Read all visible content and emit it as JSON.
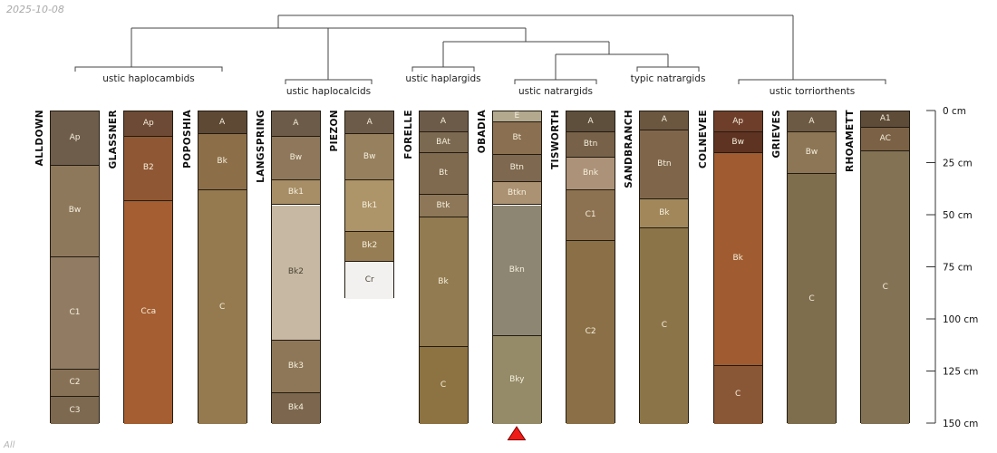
{
  "header": {
    "date": "2025-10-08"
  },
  "footer": {
    "label": "All"
  },
  "chart_data": {
    "type": "bar",
    "variant": "soil-profile-horizon-columns-with-dendrogram",
    "title": "",
    "depth_axis": {
      "unit": "cm",
      "min": 0,
      "max": 150,
      "ticks": [
        0,
        25,
        50,
        75,
        100,
        125,
        150
      ],
      "tick_labels": [
        "0 cm",
        "25 cm",
        "50 cm",
        "75 cm",
        "100 cm",
        "125 cm",
        "150 cm"
      ]
    },
    "groups": [
      {
        "label": "ustic haplocambids",
        "members": [
          "ALLDOWN",
          "GLASSNER",
          "POPOSHIA"
        ]
      },
      {
        "label": "ustic haplocalcids",
        "members": [
          "LANGSPRING",
          "PIEZON"
        ]
      },
      {
        "label": "ustic haplargids",
        "members": [
          "FORELLE"
        ]
      },
      {
        "label": "ustic natrargids",
        "members": [
          "OBADIA",
          "TISWORTH"
        ]
      },
      {
        "label": "typic natrargids",
        "members": [
          "SANDBRANCH"
        ]
      },
      {
        "label": "ustic torriorthents",
        "members": [
          "COLNEVEE",
          "GRIEVES",
          "RHOAMETT"
        ]
      }
    ],
    "dendrogram": {
      "description": "hierarchical clustering of soil subgroups",
      "topology": [
        "(ustic natrargids + typic natrargids)",
        "(ustic haplargids + natrargids-cluster)",
        "(ustic haplocambids + ustic haplocalcids + argids-cluster)",
        "(left-cluster + ustic torriorthents)"
      ]
    },
    "profiles": [
      {
        "name": "ALLDOWN",
        "group": "ustic haplocambids",
        "horizons": [
          {
            "label": "Ap",
            "top_cm": 0,
            "bottom_cm": 26,
            "color": "#6f5d4b"
          },
          {
            "label": "Bw",
            "top_cm": 26,
            "bottom_cm": 70,
            "color": "#8e785c"
          },
          {
            "label": "C1",
            "top_cm": 70,
            "bottom_cm": 124,
            "color": "#917c63"
          },
          {
            "label": "C2",
            "top_cm": 124,
            "bottom_cm": 137,
            "color": "#877156"
          },
          {
            "label": "C3",
            "top_cm": 137,
            "bottom_cm": 150,
            "color": "#7d6850"
          }
        ]
      },
      {
        "name": "GLASSNER",
        "group": "ustic haplocambids",
        "horizons": [
          {
            "label": "Ap",
            "top_cm": 0,
            "bottom_cm": 12,
            "color": "#6d4a35"
          },
          {
            "label": "B2",
            "top_cm": 12,
            "bottom_cm": 43,
            "color": "#8f5733"
          },
          {
            "label": "Cca",
            "top_cm": 43,
            "bottom_cm": 150,
            "color": "#a55e31"
          }
        ]
      },
      {
        "name": "POPOSHIA",
        "group": "ustic haplocambids",
        "horizons": [
          {
            "label": "A",
            "top_cm": 0,
            "bottom_cm": 11,
            "color": "#5e4935"
          },
          {
            "label": "Bk",
            "top_cm": 11,
            "bottom_cm": 38,
            "color": "#8c6f49"
          },
          {
            "label": "C",
            "top_cm": 38,
            "bottom_cm": 150,
            "color": "#957a50"
          }
        ]
      },
      {
        "name": "LANGSPRING",
        "group": "ustic haplocalcids",
        "horizons": [
          {
            "label": "A",
            "top_cm": 0,
            "bottom_cm": 12,
            "color": "#6d5b49"
          },
          {
            "label": "Bw",
            "top_cm": 12,
            "bottom_cm": 33,
            "color": "#8e775a"
          },
          {
            "label": "Bk1",
            "top_cm": 33,
            "bottom_cm": 45,
            "color": "#a78e66"
          },
          {
            "label": "Bk2",
            "top_cm": 45,
            "bottom_cm": 110,
            "color": "#c6b8a2"
          },
          {
            "label": "Bk3",
            "top_cm": 110,
            "bottom_cm": 135,
            "color": "#8e7758"
          },
          {
            "label": "Bk4",
            "top_cm": 135,
            "bottom_cm": 150,
            "color": "#7c674e"
          }
        ]
      },
      {
        "name": "PIEZON",
        "group": "ustic haplocalcids",
        "horizons": [
          {
            "label": "A",
            "top_cm": 0,
            "bottom_cm": 11,
            "color": "#6d5b49"
          },
          {
            "label": "Bw",
            "top_cm": 11,
            "bottom_cm": 33,
            "color": "#97805e"
          },
          {
            "label": "Bk1",
            "top_cm": 33,
            "bottom_cm": 58,
            "color": "#ad9469"
          },
          {
            "label": "Bk2",
            "top_cm": 58,
            "bottom_cm": 72,
            "color": "#977d53"
          },
          {
            "label": "Cr",
            "top_cm": 72,
            "bottom_cm": 90,
            "color": "#f2f1ef"
          }
        ]
      },
      {
        "name": "FORELLE",
        "group": "ustic haplargids",
        "horizons": [
          {
            "label": "A",
            "top_cm": 0,
            "bottom_cm": 10,
            "color": "#6d5b49"
          },
          {
            "label": "BAt",
            "top_cm": 10,
            "bottom_cm": 20,
            "color": "#7c6951"
          },
          {
            "label": "Bt",
            "top_cm": 20,
            "bottom_cm": 40,
            "color": "#7f6a4f"
          },
          {
            "label": "Btk",
            "top_cm": 40,
            "bottom_cm": 51,
            "color": "#8e7758"
          },
          {
            "label": "Bk",
            "top_cm": 51,
            "bottom_cm": 113,
            "color": "#927b50"
          },
          {
            "label": "C",
            "top_cm": 113,
            "bottom_cm": 150,
            "color": "#8d7342"
          }
        ]
      },
      {
        "name": "OBADIA",
        "group": "ustic natrargids",
        "horizons": [
          {
            "label": "E",
            "top_cm": 0,
            "bottom_cm": 5,
            "color": "#b3a98f"
          },
          {
            "label": "Bt",
            "top_cm": 5,
            "bottom_cm": 21,
            "color": "#8a6f50"
          },
          {
            "label": "Btn",
            "top_cm": 21,
            "bottom_cm": 34,
            "color": "#7e6850"
          },
          {
            "label": "Btkn",
            "top_cm": 34,
            "bottom_cm": 45,
            "color": "#ab9272"
          },
          {
            "label": "Bkn",
            "top_cm": 45,
            "bottom_cm": 108,
            "color": "#8d8672"
          },
          {
            "label": "Bky",
            "top_cm": 108,
            "bottom_cm": 150,
            "color": "#958b68"
          }
        ]
      },
      {
        "name": "TISWORTH",
        "group": "ustic natrargids",
        "horizons": [
          {
            "label": "A",
            "top_cm": 0,
            "bottom_cm": 10,
            "color": "#5e4e3c"
          },
          {
            "label": "Btn",
            "top_cm": 10,
            "bottom_cm": 22,
            "color": "#776149"
          },
          {
            "label": "Bnk",
            "top_cm": 22,
            "bottom_cm": 38,
            "color": "#ac9278"
          },
          {
            "label": "C1",
            "top_cm": 38,
            "bottom_cm": 62,
            "color": "#8d7251"
          },
          {
            "label": "C2",
            "top_cm": 62,
            "bottom_cm": 150,
            "color": "#8b7047"
          }
        ]
      },
      {
        "name": "SANDBRANCH",
        "group": "typic natrargids",
        "horizons": [
          {
            "label": "A",
            "top_cm": 0,
            "bottom_cm": 9,
            "color": "#6b563f"
          },
          {
            "label": "Btn",
            "top_cm": 9,
            "bottom_cm": 42,
            "color": "#7f664b"
          },
          {
            "label": "Bk",
            "top_cm": 42,
            "bottom_cm": 56,
            "color": "#a1875a"
          },
          {
            "label": "C",
            "top_cm": 56,
            "bottom_cm": 150,
            "color": "#8c7449"
          }
        ]
      },
      {
        "name": "COLNEVEE",
        "group": "ustic torriorthents",
        "horizons": [
          {
            "label": "Ap",
            "top_cm": 0,
            "bottom_cm": 10,
            "color": "#6f3e2a"
          },
          {
            "label": "Bw",
            "top_cm": 10,
            "bottom_cm": 20,
            "color": "#5e3322"
          },
          {
            "label": "Bk",
            "top_cm": 20,
            "bottom_cm": 122,
            "color": "#a05c30"
          },
          {
            "label": "C",
            "top_cm": 122,
            "bottom_cm": 150,
            "color": "#8a5736"
          }
        ]
      },
      {
        "name": "GRIEVES",
        "group": "ustic torriorthents",
        "horizons": [
          {
            "label": "A",
            "top_cm": 0,
            "bottom_cm": 10,
            "color": "#6d5a44"
          },
          {
            "label": "Bw",
            "top_cm": 10,
            "bottom_cm": 30,
            "color": "#8d7656"
          },
          {
            "label": "C",
            "top_cm": 30,
            "bottom_cm": 150,
            "color": "#7f6e4e"
          }
        ]
      },
      {
        "name": "RHOAMETT",
        "group": "ustic torriorthents",
        "horizons": [
          {
            "label": "A1",
            "top_cm": 0,
            "bottom_cm": 8,
            "color": "#5e4c39"
          },
          {
            "label": "AC",
            "top_cm": 8,
            "bottom_cm": 19,
            "color": "#7b6145"
          },
          {
            "label": "C",
            "top_cm": 19,
            "bottom_cm": 150,
            "color": "#847255"
          }
        ]
      }
    ],
    "marker": {
      "shape": "triangle-up",
      "color": "#ee1b17",
      "under_profile": "OBADIA"
    }
  }
}
